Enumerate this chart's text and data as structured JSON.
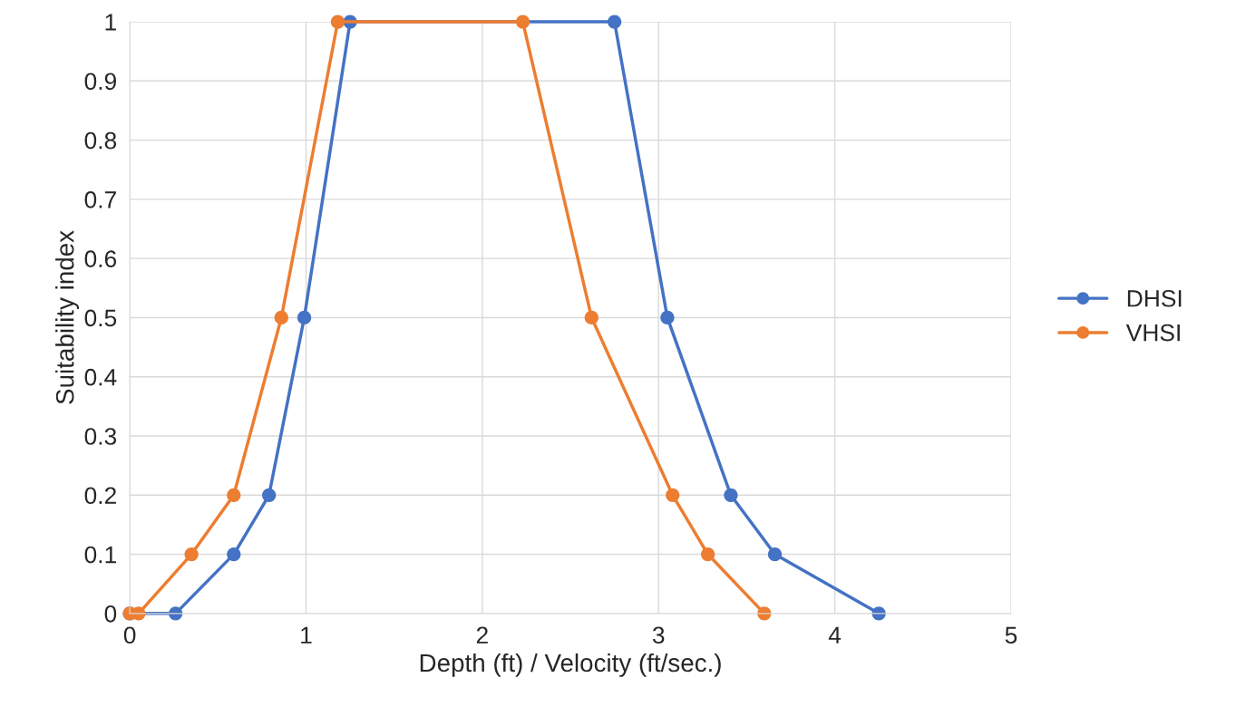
{
  "chart_data": {
    "type": "line",
    "xlabel": "Depth (ft) / Velocity (ft/sec.)",
    "ylabel": "Suitability index",
    "series": [
      {
        "name": "DHSI",
        "color": "#4472c4",
        "x": [
          0,
          0.26,
          0.59,
          0.79,
          0.99,
          1.25,
          2.75,
          3.05,
          3.41,
          3.66,
          4.25
        ],
        "values": [
          0,
          0,
          0.1,
          0.2,
          0.5,
          1,
          1,
          0.5,
          0.2,
          0.1,
          0
        ]
      },
      {
        "name": "VHSI",
        "color": "#ed7d31",
        "x": [
          0,
          0.05,
          0.35,
          0.59,
          0.86,
          1.18,
          2.23,
          2.62,
          3.08,
          3.28,
          3.6
        ],
        "values": [
          0,
          0,
          0.1,
          0.2,
          0.5,
          1,
          1,
          0.5,
          0.2,
          0.1,
          0
        ]
      }
    ],
    "xlim": [
      0,
      5
    ],
    "xticks": [
      0,
      1,
      2,
      3,
      4,
      5
    ],
    "ylim": [
      0,
      1
    ],
    "yticks": [
      0,
      0.1,
      0.2,
      0.3,
      0.4,
      0.5,
      0.6,
      0.7,
      0.8,
      0.9,
      1
    ],
    "grid": true,
    "legend": "right",
    "marker": "circle",
    "line_style": "solid"
  }
}
